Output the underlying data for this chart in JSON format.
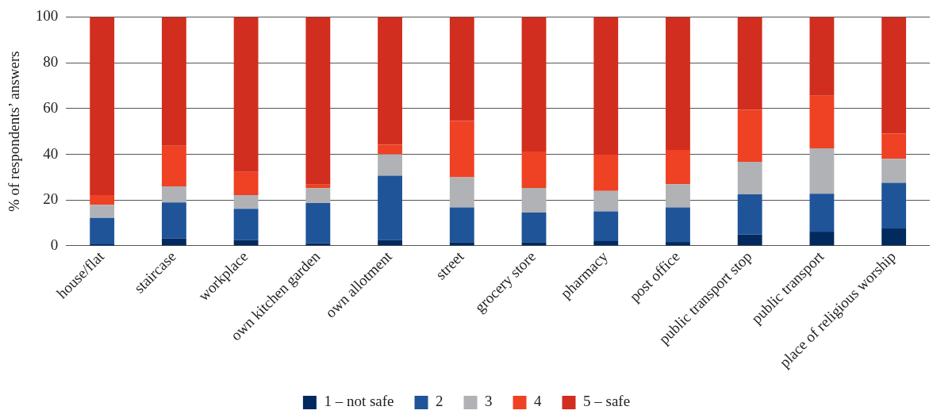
{
  "chart_data": {
    "type": "bar",
    "stacked": true,
    "ylabel": "% of respondents’ answers",
    "categories": [
      "house/flat",
      "staircase",
      "workplace",
      "own kitchen garden",
      "own allotment",
      "street",
      "grocery store",
      "pharmacy",
      "post office",
      "public transport stop",
      "public transport",
      "place of religious worship"
    ],
    "series": [
      {
        "name": "1 – not safe",
        "color": "#022a5e",
        "values": [
          0.7,
          3.2,
          2.5,
          1.1,
          2.5,
          1.5,
          1.5,
          2.1,
          1.7,
          5,
          6.2,
          7.6
        ]
      },
      {
        "name": "2",
        "color": "#1f5499",
        "values": [
          11.5,
          15.8,
          13.7,
          17.6,
          28.2,
          15.3,
          13,
          13,
          15.1,
          17.5,
          16.6,
          19.9
        ]
      },
      {
        "name": "3",
        "color": "#b1b2b5",
        "values": [
          5.7,
          7,
          6,
          6.5,
          9.3,
          13.2,
          10.8,
          8.9,
          10.1,
          14.2,
          19.8,
          10.5
        ]
      },
      {
        "name": "4",
        "color": "#ef4123",
        "values": [
          4.3,
          17.7,
          10.1,
          1.6,
          4.2,
          24.6,
          15.9,
          15.8,
          15,
          22.7,
          23,
          11
        ]
      },
      {
        "name": "5 – safe",
        "color": "#d12e1f",
        "values": [
          77.8,
          56.3,
          67.7,
          73.2,
          55.8,
          45.4,
          58.8,
          60.2,
          58.1,
          40.6,
          34.4,
          51
        ]
      }
    ],
    "ylim": [
      0,
      100
    ],
    "yticks": [
      0,
      20,
      40,
      60,
      80,
      100
    ],
    "grid": "y",
    "legend": "bottom"
  }
}
